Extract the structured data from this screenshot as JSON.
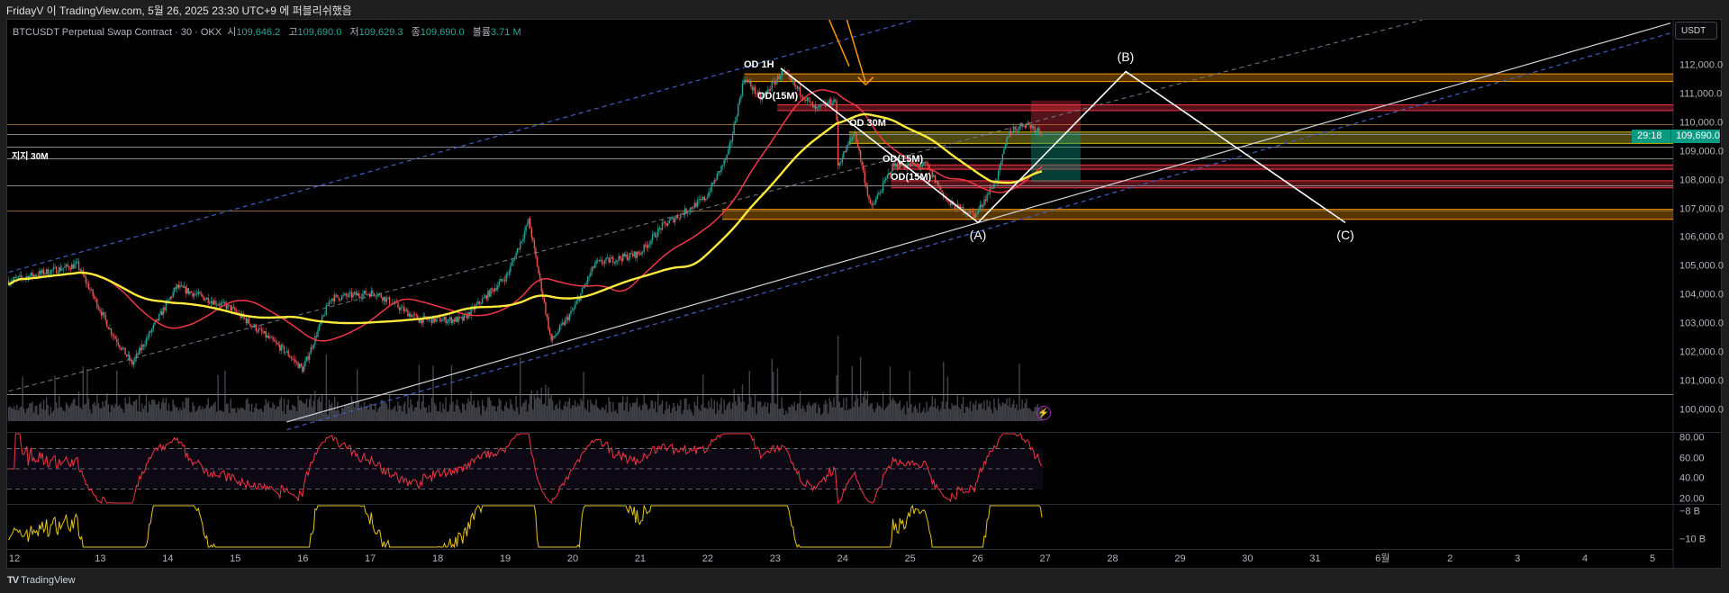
{
  "header": {
    "byline": "FridayV 이 TradingView.com, 5월 26, 2025 23:30 UTC+9 에 퍼블리쉬했음"
  },
  "legend": {
    "symbol": "BTCUSDT Perpetual Swap Contract · 30 · OKX",
    "o_label": "시",
    "o": "109,646.2",
    "h_label": "고",
    "h": "109,690.0",
    "l_label": "저",
    "l": "109,629.3",
    "c_label": "종",
    "c": "109,690.0",
    "vol_label": "볼륨",
    "vol": "3.71 M"
  },
  "price_axis": {
    "currency": "USDT",
    "labels": [
      "112,000.0",
      "111,000.0",
      "110,000.0",
      "109,000.0",
      "108,000.0",
      "107,000.0",
      "106,000.0",
      "105,000.0",
      "104,000.0",
      "103,000.0",
      "102,000.0",
      "101,000.0",
      "100,000.0"
    ],
    "last_price": "109,690.0",
    "countdown": "29:18"
  },
  "rsi_axis": {
    "labels": [
      "80.00",
      "60.00",
      "40.00",
      "20.00"
    ]
  },
  "indicator_axis": {
    "labels": [
      "−8 B",
      "−10 B"
    ]
  },
  "time_axis": {
    "labels": [
      "12",
      "13",
      "14",
      "15",
      "16",
      "17",
      "18",
      "19",
      "20",
      "21",
      "22",
      "23",
      "24",
      "25",
      "26",
      "27",
      "28",
      "29",
      "30",
      "31",
      "6월",
      "2",
      "3",
      "4",
      "5"
    ]
  },
  "annotations": {
    "od_1h": "OD 1H",
    "od_15m_a": "OD(15M)",
    "od_30m": "OD 30M",
    "od_15m_b": "OD(15M)",
    "od_15m_c": "OD(15M)",
    "support_30m": "지지 30M",
    "wave_a": "(A)",
    "wave_b": "(B)",
    "wave_c": "(C)"
  },
  "footer": {
    "brand": "TradingView"
  },
  "colors": {
    "up": "#26a69a",
    "down": "#ef5350",
    "ma_fast": "#f23645",
    "ma_slow": "#ffeb3b",
    "accent": "#089981"
  },
  "chart_data": {
    "type": "candlestick",
    "timeframe": "30",
    "x_unit": "days since May 13",
    "price_path": [
      [
        -1.36,
        104500
      ],
      [
        -0.34,
        105070
      ],
      [
        0.15,
        102770
      ],
      [
        0.47,
        101600
      ],
      [
        1.13,
        104300
      ],
      [
        1.94,
        103540
      ],
      [
        2.76,
        102000
      ],
      [
        3.0,
        101400
      ],
      [
        3.41,
        103900
      ],
      [
        4.07,
        104100
      ],
      [
        4.72,
        103150
      ],
      [
        5.37,
        103150
      ],
      [
        6.03,
        104700
      ],
      [
        6.35,
        106600
      ],
      [
        6.68,
        102400
      ],
      [
        7.01,
        103500
      ],
      [
        7.33,
        105100
      ],
      [
        7.99,
        105460
      ],
      [
        8.32,
        106400
      ],
      [
        8.97,
        107400
      ],
      [
        9.3,
        108900
      ],
      [
        9.54,
        111600
      ],
      [
        9.79,
        110850
      ],
      [
        10.11,
        111800
      ],
      [
        10.6,
        110460
      ],
      [
        10.9,
        110850
      ],
      [
        10.93,
        108540
      ],
      [
        11.18,
        109700
      ],
      [
        11.42,
        107000
      ],
      [
        11.75,
        108540
      ],
      [
        12.24,
        108540
      ],
      [
        12.57,
        107200
      ],
      [
        12.97,
        106800
      ],
      [
        13.3,
        108150
      ],
      [
        13.46,
        109700
      ],
      [
        13.71,
        110000
      ],
      [
        13.96,
        109690
      ]
    ],
    "zones": [
      {
        "type": "orange",
        "from": 111460,
        "to": 111730
      },
      {
        "type": "red",
        "from": 110450,
        "to": 110650
      },
      {
        "type": "yellow",
        "from": 109300,
        "to": 109700
      },
      {
        "type": "red",
        "from": 108400,
        "to": 108550
      },
      {
        "type": "red",
        "from": 107750,
        "to": 108000
      },
      {
        "type": "orange",
        "from": 106650,
        "to": 107000
      }
    ],
    "ylim": [
      99700,
      112800
    ],
    "rsi_levels": [
      70,
      50,
      30
    ]
  }
}
